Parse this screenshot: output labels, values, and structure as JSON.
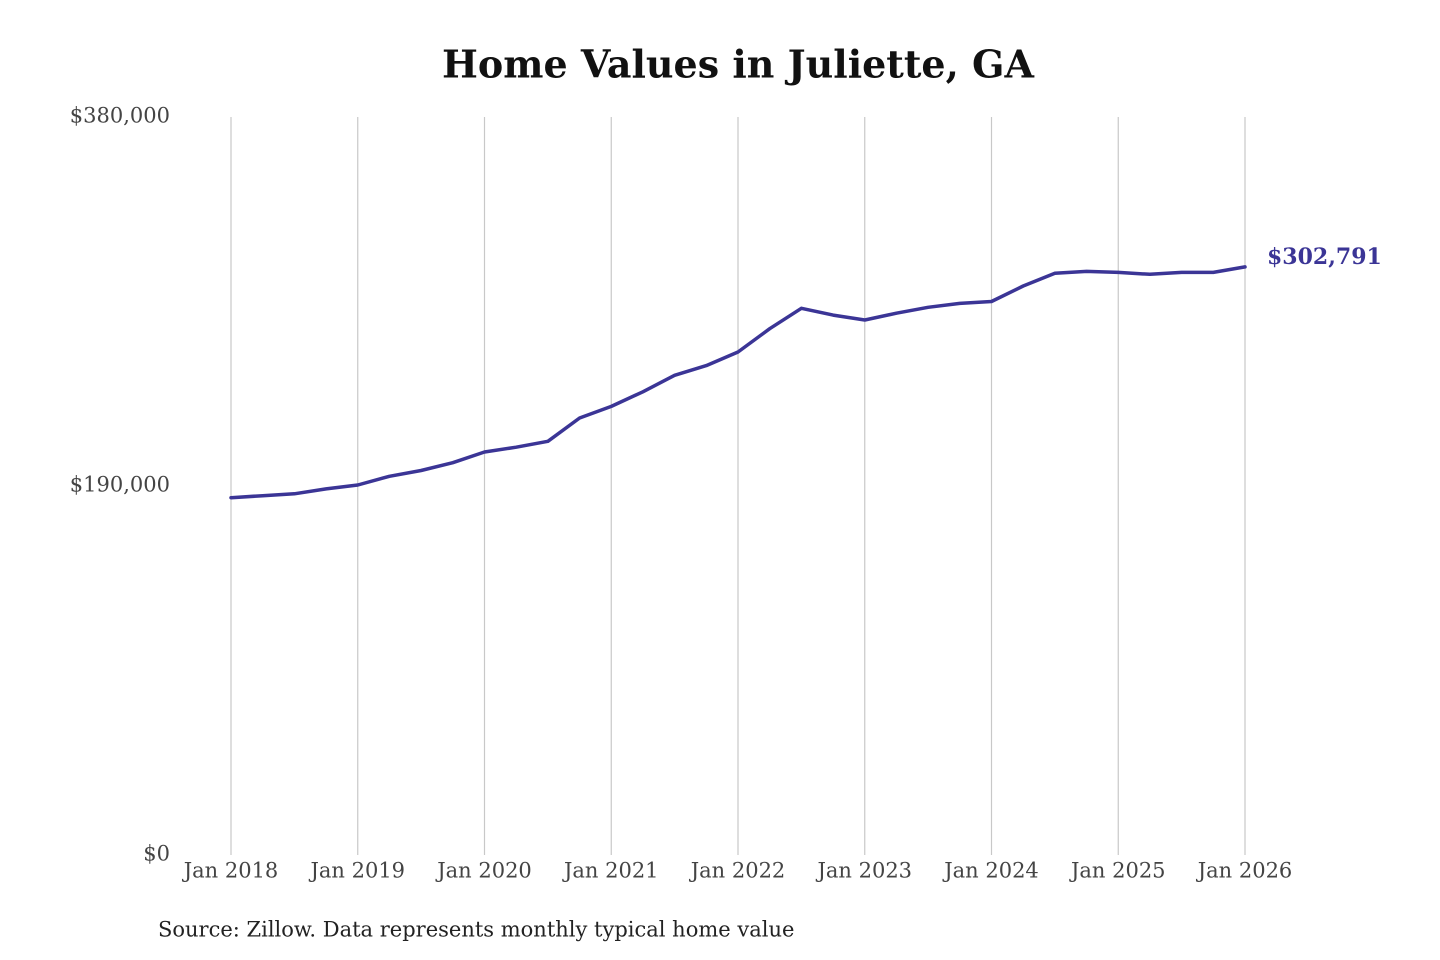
{
  "chart_data": {
    "type": "line",
    "title": "Home Values in Juliette, GA",
    "source": "Source: Zillow. Data represents monthly typical home value",
    "x": [
      "Jan 2018",
      "Apr 2018",
      "Jul 2018",
      "Oct 2018",
      "Jan 2019",
      "Apr 2019",
      "Jul 2019",
      "Oct 2019",
      "Jan 2020",
      "Apr 2020",
      "Jul 2020",
      "Oct 2020",
      "Jan 2021",
      "Apr 2021",
      "Jul 2021",
      "Oct 2021",
      "Jan 2022",
      "Apr 2022",
      "Jul 2022",
      "Oct 2022",
      "Jan 2023",
      "Apr 2023",
      "Jul 2023",
      "Oct 2023",
      "Jan 2024",
      "Apr 2024",
      "Jul 2024",
      "Oct 2024",
      "Jan 2025",
      "Apr 2025",
      "Jul 2025",
      "Oct 2025",
      "Jan 2026"
    ],
    "series": [
      {
        "name": "Home value",
        "color": "#3b3596",
        "values": [
          184000,
          185000,
          186000,
          188500,
          190500,
          195000,
          198000,
          202000,
          207500,
          210000,
          213000,
          225000,
          231000,
          238500,
          247000,
          252000,
          259000,
          271000,
          281500,
          278000,
          275500,
          279000,
          282000,
          284000,
          285000,
          293000,
          299500,
          300500,
          300000,
          299000,
          300000,
          300000,
          302791
        ],
        "value_labels": [
          null,
          null,
          null,
          null,
          null,
          null,
          null,
          null,
          null,
          null,
          null,
          null,
          null,
          null,
          null,
          null,
          null,
          null,
          null,
          null,
          null,
          null,
          null,
          null,
          null,
          null,
          null,
          null,
          null,
          null,
          null,
          null,
          "$302,791"
        ]
      }
    ],
    "xticks": [
      "Jan 2018",
      "Jan 2019",
      "Jan 2020",
      "Jan 2021",
      "Jan 2022",
      "Jan 2023",
      "Jan 2024",
      "Jan 2025",
      "Jan 2026"
    ],
    "ylim": [
      0,
      380000
    ],
    "yticks": [
      {
        "value": 0,
        "label": "$0"
      },
      {
        "value": 190000,
        "label": "$190,000"
      },
      {
        "value": 380000,
        "label": "$380,000"
      }
    ],
    "grid": "x"
  }
}
